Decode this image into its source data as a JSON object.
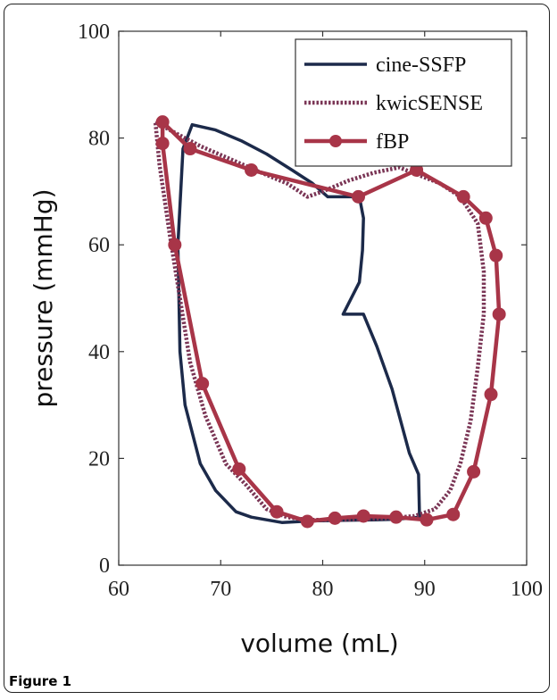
{
  "figure": {
    "caption": "Figure 1"
  },
  "chart_data": {
    "type": "line",
    "title": "",
    "xlabel": "volume (mL)",
    "ylabel": "pressure (mmHg)",
    "xlim": [
      60,
      100
    ],
    "ylim": [
      0,
      100
    ],
    "xticks": [
      60,
      70,
      80,
      90,
      100
    ],
    "yticks": [
      0,
      20,
      40,
      60,
      80,
      100
    ],
    "grid": false,
    "legend_position": "top-right",
    "series": [
      {
        "name": "cine-SSFP",
        "color": "#1c2a4a",
        "style": "solid",
        "markers": false,
        "x": [
          67.2,
          69.5,
          72.0,
          74.5,
          77.0,
          79.0,
          80.5,
          81.5,
          82.5,
          83.6,
          84.0,
          83.9,
          83.6,
          82.0,
          82.5,
          84.0,
          85.3,
          86.8,
          88.5,
          89.4,
          89.5,
          88.5,
          87.0,
          85.0,
          82.0,
          79.0,
          76.0,
          73.0,
          71.5,
          69.5,
          68.0,
          66.5,
          66.0,
          65.8,
          66.3,
          67.2
        ],
        "y": [
          82.5,
          81.5,
          79.5,
          77.0,
          74.0,
          71.5,
          69.0,
          69.0,
          69.0,
          69.0,
          65.0,
          59.0,
          53.0,
          47.0,
          47.0,
          47.0,
          41.0,
          33.0,
          21.0,
          17.0,
          9.0,
          8.8,
          8.6,
          8.5,
          8.4,
          8.3,
          8.0,
          9.0,
          10.0,
          14.0,
          19.0,
          30.0,
          40.0,
          60.0,
          78.0,
          82.5
        ]
      },
      {
        "name": "kwicSENSE",
        "color": "#7a3555",
        "style": "dotted",
        "markers": false,
        "x": [
          63.6,
          65.5,
          68.0,
          71.0,
          74.0,
          76.5,
          78.5,
          80.0,
          82.5,
          85.0,
          87.5,
          89.5,
          91.5,
          93.5,
          95.2,
          95.8,
          95.8,
          95.2,
          94.5,
          93.5,
          92.5,
          91.0,
          89.0,
          86.5,
          83.5,
          81.0,
          78.5,
          76.5,
          74.5,
          72.5,
          70.5,
          68.5,
          67.0,
          66.0,
          65.0,
          64.0,
          63.6
        ],
        "y": [
          83.0,
          81.0,
          78.5,
          76.0,
          73.5,
          71.5,
          69.0,
          70.0,
          72.0,
          73.5,
          74.5,
          73.0,
          71.5,
          69.0,
          64.0,
          55.0,
          47.0,
          37.0,
          27.0,
          19.0,
          14.0,
          10.5,
          9.2,
          8.8,
          8.6,
          8.5,
          8.5,
          9.0,
          10.5,
          15.0,
          19.0,
          28.0,
          38.0,
          50.0,
          62.0,
          75.0,
          83.0
        ]
      },
      {
        "name": "fBP",
        "color": "#a83548",
        "style": "solid",
        "markers": true,
        "x": [
          64.3,
          67.0,
          73.0,
          83.5,
          89.2,
          93.8,
          96.0,
          97.0,
          97.3,
          96.5,
          94.8,
          92.8,
          90.2,
          87.2,
          84.0,
          81.2,
          78.5,
          75.5,
          71.8,
          68.2,
          65.5,
          64.3,
          64.3
        ],
        "y": [
          83.0,
          78.0,
          74.0,
          69.0,
          74.0,
          69.0,
          65.0,
          58.0,
          47.0,
          32.0,
          17.5,
          9.5,
          8.5,
          9.0,
          9.2,
          8.8,
          8.2,
          10.0,
          18.0,
          34.0,
          60.0,
          79.0,
          83.0
        ]
      }
    ]
  }
}
